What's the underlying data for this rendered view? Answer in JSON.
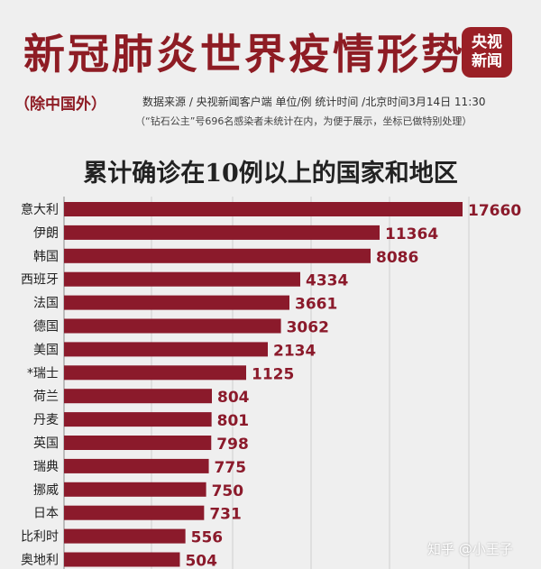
{
  "header": {
    "title": "新冠肺炎世界疫情形势",
    "logo_line1": "央视",
    "logo_line2": "新闻",
    "subtitle": "（除中国外）",
    "source": "数据来源 / 央视新闻客户端  单位/例   统计时间 /北京时间3月14日 11:30",
    "note": "（“钻石公主”号696名感染者未统计在内，为便于展示，坐标已做特别处理）"
  },
  "watermark": "知乎 @小王子",
  "colors": {
    "bar": "#8b1a2b",
    "title": "#8e1c24",
    "background": "#efefef"
  },
  "chart_data": {
    "type": "bar",
    "orientation": "horizontal",
    "title": "累计确诊在10例以上的国家和地区",
    "categories": [
      "意大利",
      "伊朗",
      "韩国",
      "西班牙",
      "法国",
      "德国",
      "美国",
      "*瑞士",
      "荷兰",
      "丹麦",
      "英国",
      "瑞典",
      "挪威",
      "日本",
      "比利时",
      "奥地利"
    ],
    "values": [
      17660,
      11364,
      8086,
      4334,
      3661,
      3062,
      2134,
      1125,
      804,
      801,
      798,
      775,
      750,
      731,
      556,
      504
    ],
    "value_labels": [
      "17660",
      "11364",
      "8086",
      "4334",
      "3661",
      "3062",
      "2134",
      "1125",
      "804",
      "801",
      "798",
      "775",
      "750",
      "731",
      "556",
      "504"
    ],
    "scale_note": "坐标已做特别处理"
  }
}
